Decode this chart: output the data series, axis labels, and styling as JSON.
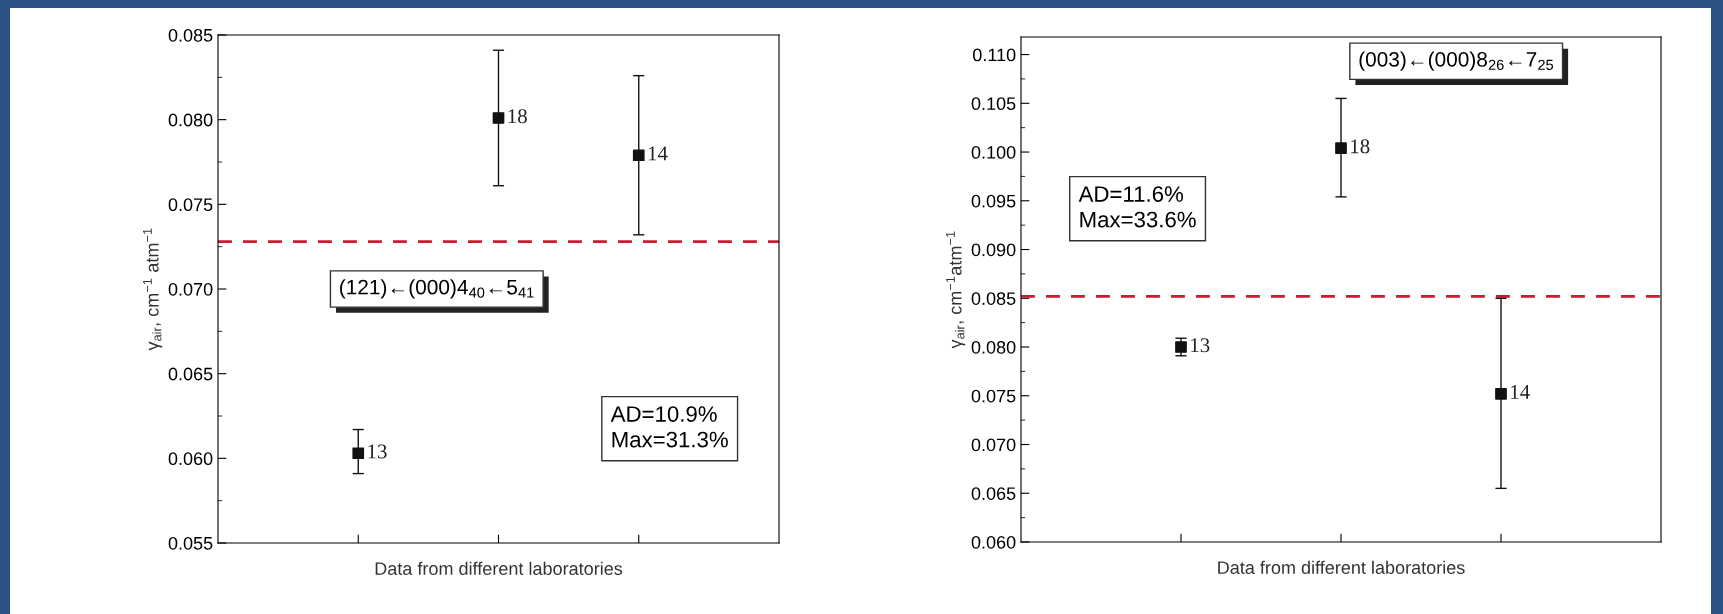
{
  "chart_data": [
    {
      "type": "scatter",
      "categories": [
        null,
        null,
        null
      ],
      "xlabel": "Data from different laboratories",
      "ylabel": "γ$_{air}$, cm$^{−1}$ atm$^{−1}$",
      "marker": "square",
      "color": "#111111",
      "values": [
        0.0603,
        0.0801,
        0.0779
      ],
      "errors": [
        [
          0.0591,
          0.0617
        ],
        [
          0.0761,
          0.0841
        ],
        [
          0.0732,
          0.0826
        ]
      ],
      "ylim": [
        0.055,
        0.085
      ],
      "yticks": [
        {
          "value": 0.055,
          "label": "0.055"
        },
        {
          "value": 0.0575,
          "label": null
        },
        {
          "value": 0.06,
          "label": "0.060"
        },
        {
          "value": 0.0625,
          "label": null
        },
        {
          "value": 0.065,
          "label": "0.065"
        },
        {
          "value": 0.0675,
          "label": null
        },
        {
          "value": 0.07,
          "label": "0.070"
        },
        {
          "value": 0.0725,
          "label": null
        },
        {
          "value": 0.075,
          "label": "0.075"
        },
        {
          "value": 0.0775,
          "label": null
        },
        {
          "value": 0.08,
          "label": "0.080"
        },
        {
          "value": 0.0825,
          "label": null
        },
        {
          "value": 0.085,
          "label": "0.085"
        }
      ],
      "ref_lines": [
        {
          "axis": "y",
          "value": 0.0728,
          "color": "#cc1a2e",
          "line_style": "dashed"
        }
      ],
      "annotations": [
        "(121)←(000)4$_{40}$←5$_{41}$",
        "AD=10.9%\nMax=31.3%",
        "13",
        "18",
        "14"
      ]
    },
    {
      "type": "scatter",
      "categories": [
        null,
        null,
        null
      ],
      "xlabel": "Data from different laboratories",
      "ylabel": "γ$_{air}$, cm$^{−1}$atm$^{−1}$",
      "marker": "square",
      "color": "#111111",
      "values": [
        0.08,
        0.1004,
        0.0752
      ],
      "errors": [
        [
          0.0791,
          0.0809
        ],
        [
          0.0954,
          0.1055
        ],
        [
          0.0655,
          0.085
        ]
      ],
      "ylim": [
        0.06,
        0.1118
      ],
      "yticks": [
        {
          "value": 0.06,
          "label": "0.060"
        },
        {
          "value": 0.0625,
          "label": null
        },
        {
          "value": 0.065,
          "label": "0.065"
        },
        {
          "value": 0.0675,
          "label": null
        },
        {
          "value": 0.07,
          "label": "0.070"
        },
        {
          "value": 0.0725,
          "label": null
        },
        {
          "value": 0.075,
          "label": "0.075"
        },
        {
          "value": 0.0775,
          "label": null
        },
        {
          "value": 0.08,
          "label": "0.080"
        },
        {
          "value": 0.0825,
          "label": null
        },
        {
          "value": 0.085,
          "label": "0.085"
        },
        {
          "value": 0.0875,
          "label": null
        },
        {
          "value": 0.09,
          "label": "0.090"
        },
        {
          "value": 0.0925,
          "label": null
        },
        {
          "value": 0.095,
          "label": "0.095"
        },
        {
          "value": 0.0975,
          "label": null
        },
        {
          "value": 0.1,
          "label": "0.100"
        },
        {
          "value": 0.1025,
          "label": null
        },
        {
          "value": 0.105,
          "label": "0.105"
        },
        {
          "value": 0.1075,
          "label": null
        },
        {
          "value": 0.11,
          "label": "0.110"
        }
      ],
      "ref_lines": [
        {
          "axis": "y",
          "value": 0.0852,
          "color": "#cc1a2e",
          "line_style": "dashed"
        }
      ],
      "annotations": [
        "(003)←(000)8$_{26}$←7$_{25}$",
        "AD=11.6%\nMax=33.6%",
        "13",
        "18",
        "14"
      ]
    }
  ]
}
